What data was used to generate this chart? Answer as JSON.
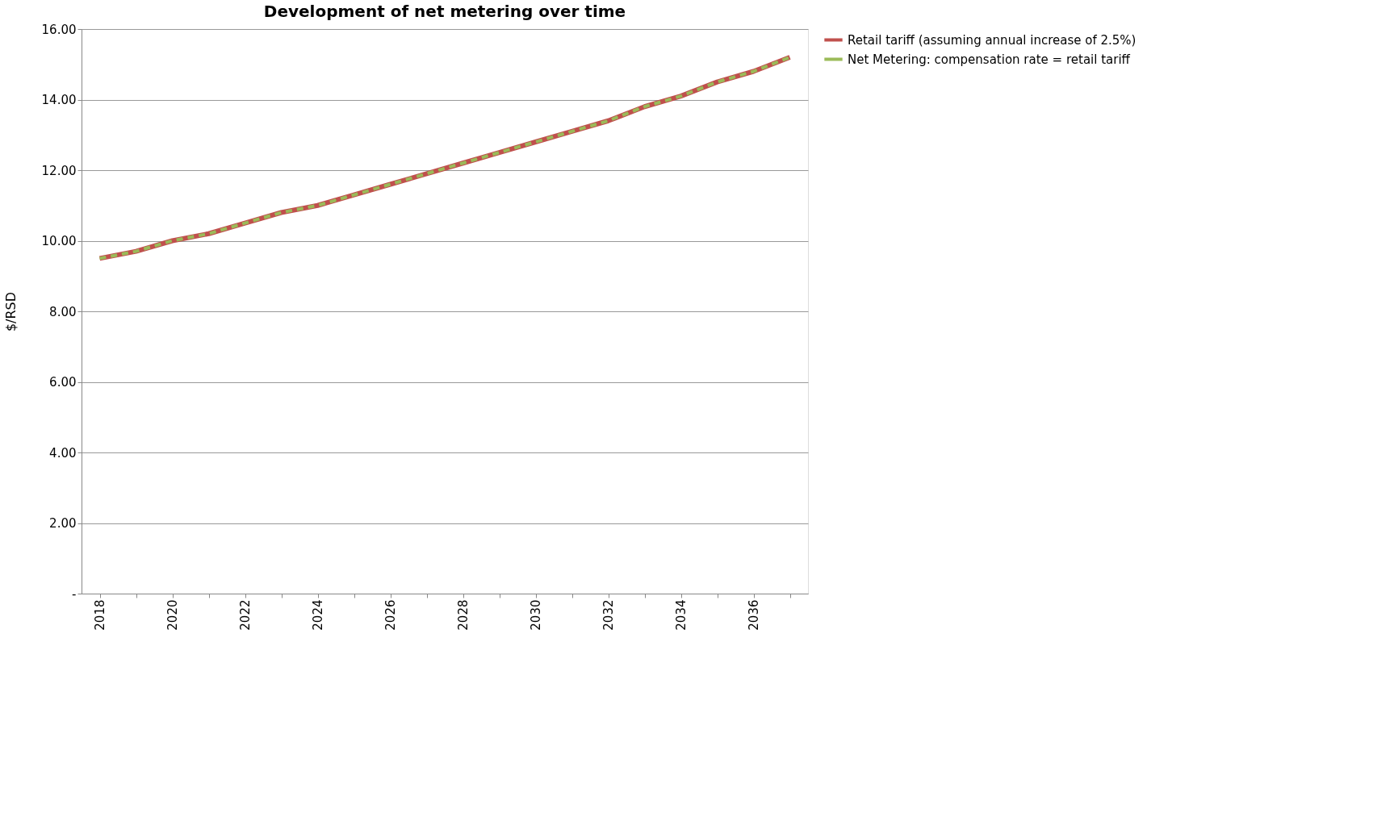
{
  "chart_data": {
    "type": "line",
    "title": "Development of net metering over time",
    "ylabel": "$/RSD",
    "categories": [
      "2018",
      null,
      "2020",
      null,
      "2022",
      null,
      "2024",
      null,
      "2026",
      null,
      "2028",
      null,
      "2030",
      null,
      "2032",
      null,
      "2034",
      null,
      "2036",
      null
    ],
    "series": [
      {
        "name": "Retail tariff (assuming annual increase of 2.5%)",
        "color": "#c0504d",
        "line_style": "solid",
        "values": [
          9.5,
          9.7,
          10.0,
          10.2,
          10.5,
          10.8,
          11.0,
          11.3,
          11.6,
          11.9,
          12.2,
          12.5,
          12.8,
          13.1,
          13.4,
          13.8,
          14.1,
          14.5,
          14.8,
          15.2
        ]
      },
      {
        "name": "Net Metering: compensation rate = retail tariff",
        "color": "#9bbb59",
        "line_style": "dashed",
        "values": [
          9.5,
          9.7,
          10.0,
          10.2,
          10.5,
          10.8,
          11.0,
          11.3,
          11.6,
          11.9,
          12.2,
          12.5,
          12.8,
          13.1,
          13.4,
          13.8,
          14.1,
          14.5,
          14.8,
          15.2
        ]
      }
    ],
    "ylim": [
      0,
      16
    ],
    "yticks": [
      {
        "value": 0,
        "label": "-"
      },
      {
        "value": 2,
        "label": "2.00"
      },
      {
        "value": 4,
        "label": "4.00"
      },
      {
        "value": 6,
        "label": "6.00"
      },
      {
        "value": 8,
        "label": "8.00"
      },
      {
        "value": 10,
        "label": "10.00"
      },
      {
        "value": 12,
        "label": "12.00"
      },
      {
        "value": 14,
        "label": "14.00"
      },
      {
        "value": 16,
        "label": "16.00"
      }
    ],
    "grid": "y",
    "legend": "right"
  }
}
